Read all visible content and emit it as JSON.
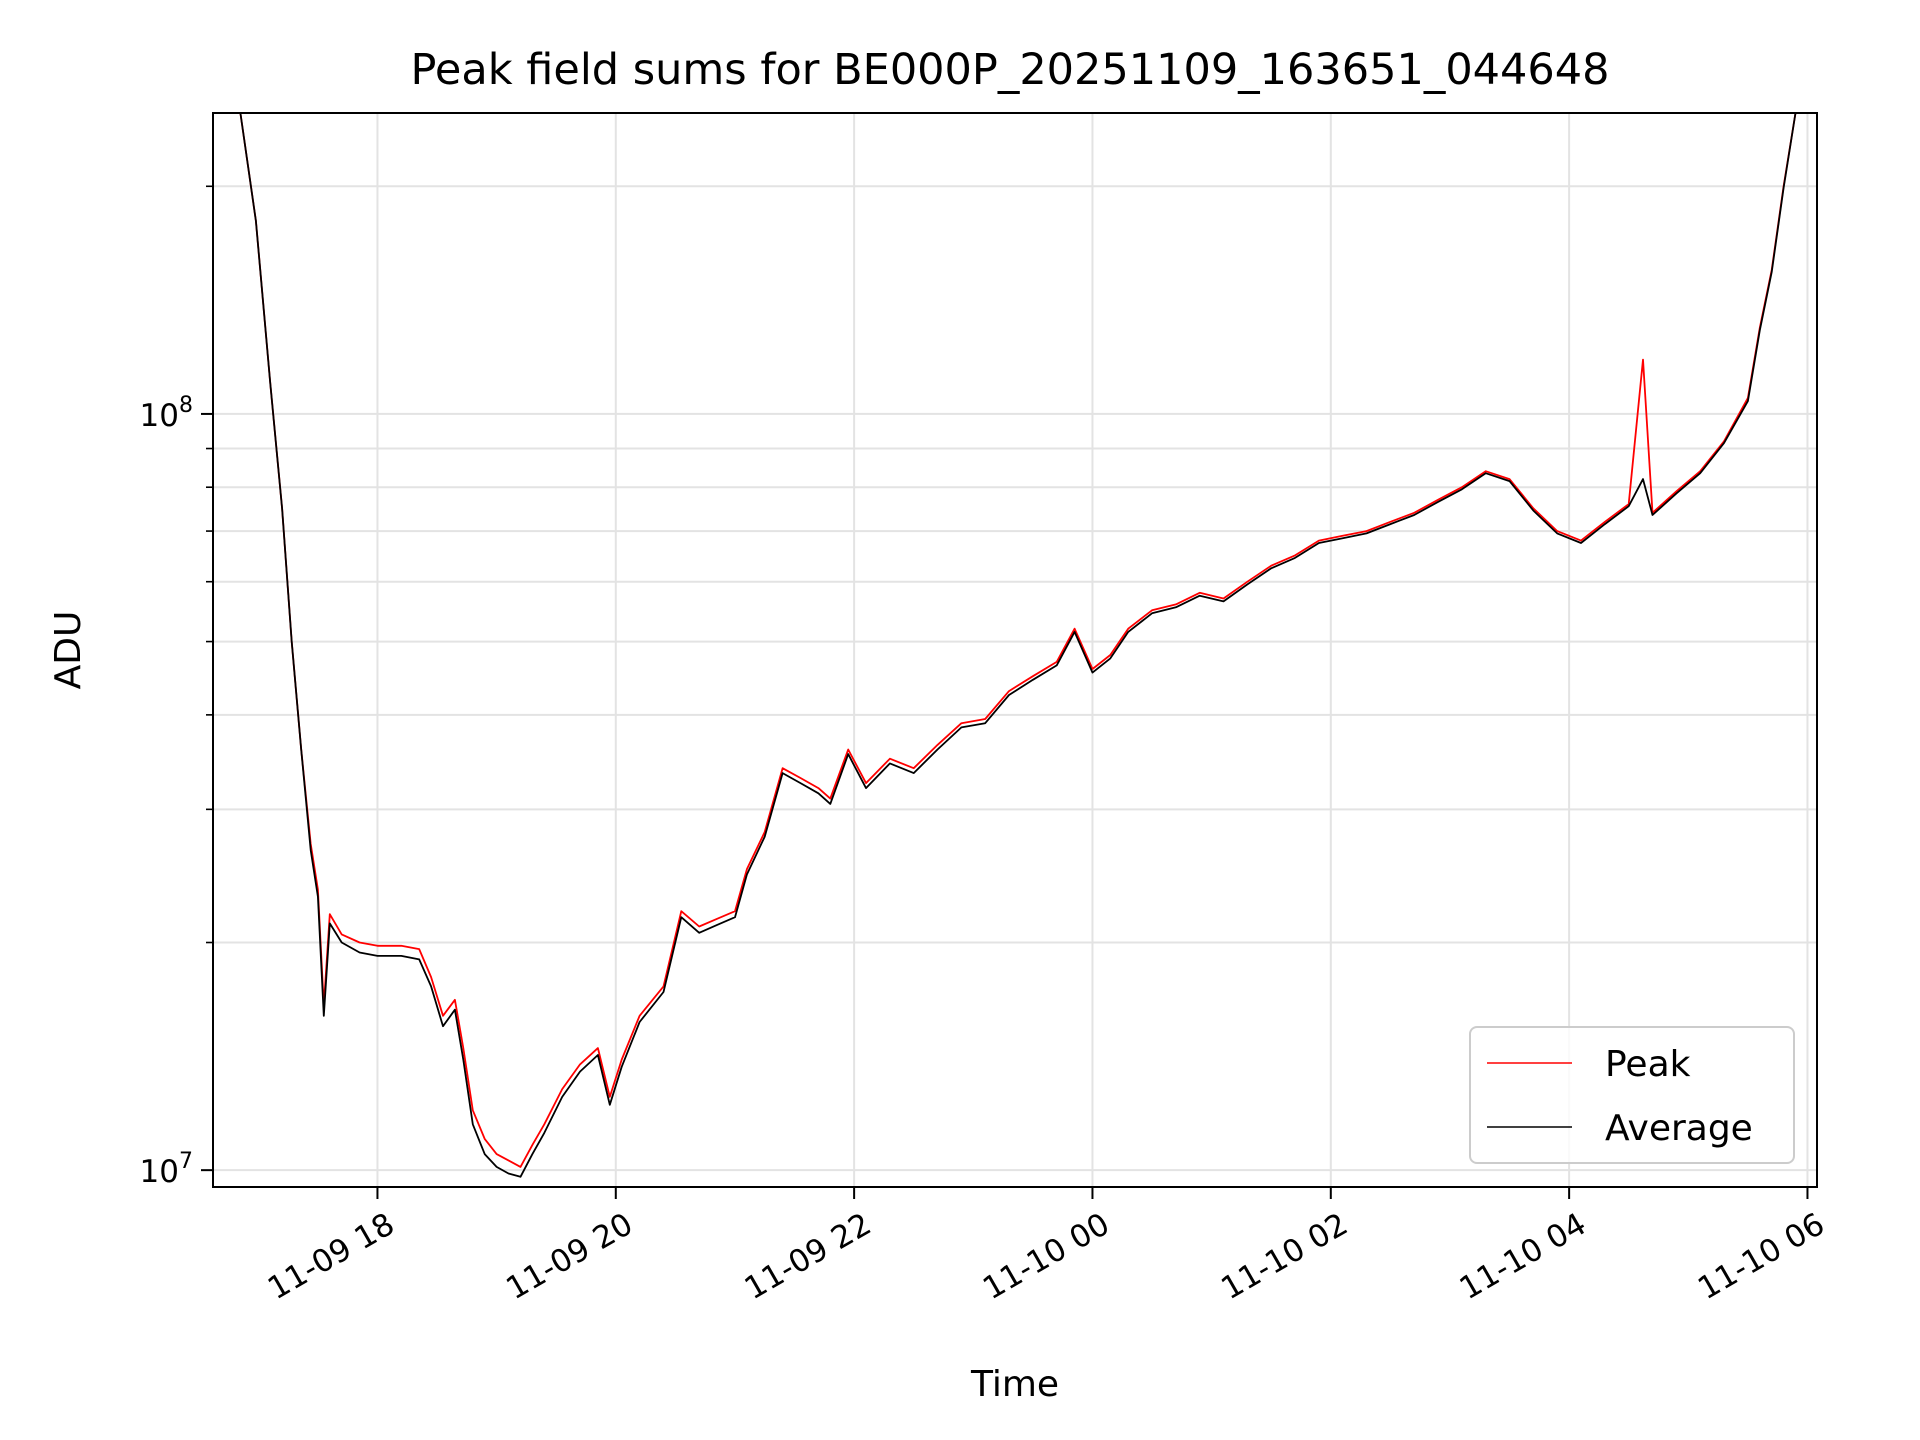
{
  "chart_data": {
    "type": "line",
    "title": "Peak field sums for BE000P_20251109_163651_044648",
    "xlabel": "Time",
    "ylabel": "ADU",
    "yscale": "log",
    "ylim": [
      9500000,
      250000000
    ],
    "xlim_hours": [
      16.62,
      30.08
    ],
    "grid": true,
    "x_ticks": [
      {
        "hours": 18,
        "label": "11-09 18"
      },
      {
        "hours": 20,
        "label": "11-09 20"
      },
      {
        "hours": 22,
        "label": "11-09 22"
      },
      {
        "hours": 24,
        "label": "11-10 00"
      },
      {
        "hours": 26,
        "label": "11-10 02"
      },
      {
        "hours": 28,
        "label": "11-10 04"
      },
      {
        "hours": 30,
        "label": "11-10 06"
      }
    ],
    "y_ticks": [
      {
        "value": 10000000,
        "base": "10",
        "exp": "7"
      },
      {
        "value": 100000000,
        "base": "10",
        "exp": "8"
      }
    ],
    "y_minor_ticks": [
      20000000,
      30000000,
      40000000,
      50000000,
      60000000,
      70000000,
      80000000,
      90000000,
      200000000
    ],
    "legend": {
      "position": "bottom-right"
    },
    "series": [
      {
        "name": "Peak",
        "color": "#ff0000",
        "points": [
          [
            16.62,
            250000000
          ],
          [
            16.85,
            250000000
          ],
          [
            16.98,
            180000000
          ],
          [
            17.1,
            110000000
          ],
          [
            17.2,
            75000000
          ],
          [
            17.28,
            50000000
          ],
          [
            17.36,
            36000000
          ],
          [
            17.44,
            27000000
          ],
          [
            17.5,
            23500000
          ],
          [
            17.55,
            16500000
          ],
          [
            17.6,
            21800000
          ],
          [
            17.7,
            20500000
          ],
          [
            17.85,
            20000000
          ],
          [
            18.0,
            19800000
          ],
          [
            18.2,
            19800000
          ],
          [
            18.35,
            19600000
          ],
          [
            18.45,
            18000000
          ],
          [
            18.55,
            16000000
          ],
          [
            18.65,
            16800000
          ],
          [
            18.72,
            14500000
          ],
          [
            18.8,
            12000000
          ],
          [
            18.9,
            11000000
          ],
          [
            19.0,
            10500000
          ],
          [
            19.1,
            10300000
          ],
          [
            19.2,
            10100000
          ],
          [
            19.3,
            10800000
          ],
          [
            19.4,
            11500000
          ],
          [
            19.55,
            12800000
          ],
          [
            19.7,
            13800000
          ],
          [
            19.85,
            14500000
          ],
          [
            19.95,
            12500000
          ],
          [
            20.05,
            14000000
          ],
          [
            20.2,
            16000000
          ],
          [
            20.4,
            17500000
          ],
          [
            20.55,
            22000000
          ],
          [
            20.7,
            21000000
          ],
          [
            20.85,
            21500000
          ],
          [
            21.0,
            22000000
          ],
          [
            21.1,
            25000000
          ],
          [
            21.25,
            28000000
          ],
          [
            21.4,
            34000000
          ],
          [
            21.55,
            33000000
          ],
          [
            21.7,
            32000000
          ],
          [
            21.8,
            31000000
          ],
          [
            21.95,
            36000000
          ],
          [
            22.1,
            32500000
          ],
          [
            22.3,
            35000000
          ],
          [
            22.5,
            34000000
          ],
          [
            22.7,
            36500000
          ],
          [
            22.9,
            39000000
          ],
          [
            23.1,
            39500000
          ],
          [
            23.3,
            43000000
          ],
          [
            23.5,
            45000000
          ],
          [
            23.7,
            47000000
          ],
          [
            23.85,
            52000000
          ],
          [
            24.0,
            46000000
          ],
          [
            24.15,
            48000000
          ],
          [
            24.3,
            52000000
          ],
          [
            24.5,
            55000000
          ],
          [
            24.7,
            56000000
          ],
          [
            24.9,
            58000000
          ],
          [
            25.1,
            57000000
          ],
          [
            25.3,
            60000000
          ],
          [
            25.5,
            63000000
          ],
          [
            25.7,
            65000000
          ],
          [
            25.9,
            68000000
          ],
          [
            26.1,
            69000000
          ],
          [
            26.3,
            70000000
          ],
          [
            26.5,
            72000000
          ],
          [
            26.7,
            74000000
          ],
          [
            26.9,
            77000000
          ],
          [
            27.1,
            80000000
          ],
          [
            27.3,
            84000000
          ],
          [
            27.5,
            82000000
          ],
          [
            27.7,
            75000000
          ],
          [
            27.9,
            70000000
          ],
          [
            28.1,
            68000000
          ],
          [
            28.3,
            72000000
          ],
          [
            28.5,
            76000000
          ],
          [
            28.62,
            118000000
          ],
          [
            28.7,
            74000000
          ],
          [
            28.9,
            79000000
          ],
          [
            29.1,
            84000000
          ],
          [
            29.3,
            92000000
          ],
          [
            29.5,
            105000000
          ],
          [
            29.6,
            130000000
          ],
          [
            29.7,
            155000000
          ],
          [
            29.8,
            200000000
          ],
          [
            29.9,
            250000000
          ],
          [
            30.08,
            250000000
          ]
        ]
      },
      {
        "name": "Average",
        "color": "#000000",
        "points": [
          [
            16.62,
            250000000
          ],
          [
            16.85,
            250000000
          ],
          [
            16.98,
            180000000
          ],
          [
            17.1,
            110000000
          ],
          [
            17.2,
            75000000
          ],
          [
            17.28,
            50000000
          ],
          [
            17.36,
            36000000
          ],
          [
            17.44,
            26500000
          ],
          [
            17.5,
            23000000
          ],
          [
            17.55,
            16000000
          ],
          [
            17.6,
            21200000
          ],
          [
            17.7,
            20000000
          ],
          [
            17.85,
            19400000
          ],
          [
            18.0,
            19200000
          ],
          [
            18.2,
            19200000
          ],
          [
            18.35,
            19000000
          ],
          [
            18.45,
            17500000
          ],
          [
            18.55,
            15500000
          ],
          [
            18.65,
            16300000
          ],
          [
            18.72,
            14000000
          ],
          [
            18.8,
            11500000
          ],
          [
            18.9,
            10500000
          ],
          [
            19.0,
            10100000
          ],
          [
            19.1,
            9900000
          ],
          [
            19.2,
            9800000
          ],
          [
            19.3,
            10500000
          ],
          [
            19.4,
            11200000
          ],
          [
            19.55,
            12500000
          ],
          [
            19.7,
            13500000
          ],
          [
            19.85,
            14200000
          ],
          [
            19.95,
            12200000
          ],
          [
            20.05,
            13700000
          ],
          [
            20.2,
            15700000
          ],
          [
            20.4,
            17200000
          ],
          [
            20.55,
            21600000
          ],
          [
            20.7,
            20600000
          ],
          [
            20.85,
            21100000
          ],
          [
            21.0,
            21600000
          ],
          [
            21.1,
            24600000
          ],
          [
            21.25,
            27600000
          ],
          [
            21.4,
            33500000
          ],
          [
            21.55,
            32500000
          ],
          [
            21.7,
            31500000
          ],
          [
            21.8,
            30500000
          ],
          [
            21.95,
            35500000
          ],
          [
            22.1,
            32000000
          ],
          [
            22.3,
            34500000
          ],
          [
            22.5,
            33500000
          ],
          [
            22.7,
            36000000
          ],
          [
            22.9,
            38500000
          ],
          [
            23.1,
            39000000
          ],
          [
            23.3,
            42500000
          ],
          [
            23.5,
            44500000
          ],
          [
            23.7,
            46500000
          ],
          [
            23.85,
            51500000
          ],
          [
            24.0,
            45500000
          ],
          [
            24.15,
            47500000
          ],
          [
            24.3,
            51500000
          ],
          [
            24.5,
            54500000
          ],
          [
            24.7,
            55500000
          ],
          [
            24.9,
            57500000
          ],
          [
            25.1,
            56500000
          ],
          [
            25.3,
            59500000
          ],
          [
            25.5,
            62500000
          ],
          [
            25.7,
            64500000
          ],
          [
            25.9,
            67500000
          ],
          [
            26.1,
            68500000
          ],
          [
            26.3,
            69500000
          ],
          [
            26.5,
            71500000
          ],
          [
            26.7,
            73500000
          ],
          [
            26.9,
            76500000
          ],
          [
            27.1,
            79500000
          ],
          [
            27.3,
            83500000
          ],
          [
            27.5,
            81500000
          ],
          [
            27.7,
            74500000
          ],
          [
            27.9,
            69500000
          ],
          [
            28.1,
            67500000
          ],
          [
            28.3,
            71500000
          ],
          [
            28.5,
            75500000
          ],
          [
            28.62,
            82000000
          ],
          [
            28.7,
            73500000
          ],
          [
            28.9,
            78500000
          ],
          [
            29.1,
            83500000
          ],
          [
            29.3,
            91500000
          ],
          [
            29.5,
            104000000
          ],
          [
            29.6,
            129000000
          ],
          [
            29.7,
            154000000
          ],
          [
            29.8,
            199000000
          ],
          [
            29.9,
            250000000
          ],
          [
            30.08,
            250000000
          ]
        ]
      }
    ]
  }
}
